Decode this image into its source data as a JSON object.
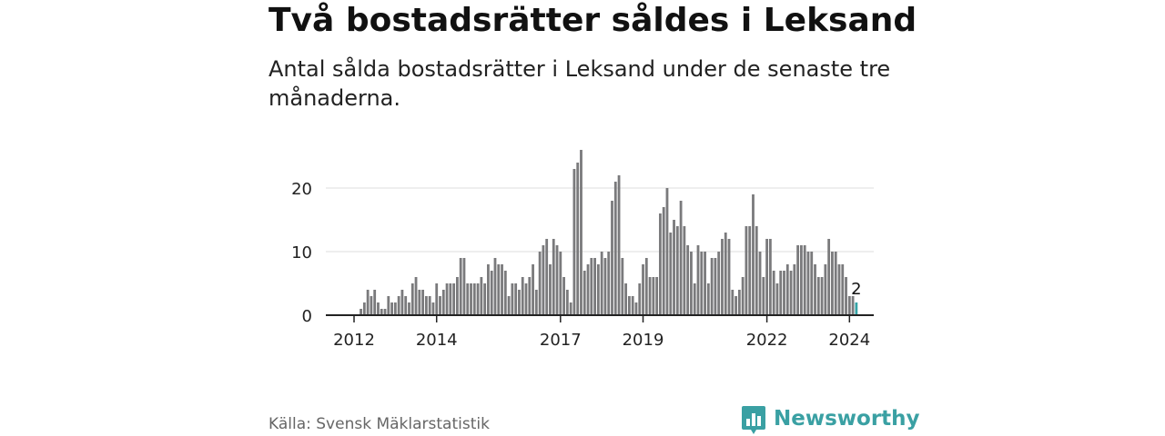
{
  "header": {
    "title": "Två bostadsrätter såldes i Leksand",
    "subtitle": "Antal sålda bostadsrätter i Leksand under de senaste tre månaderna."
  },
  "footer": {
    "source": "Källa: Svensk Mäklarstatistik",
    "brand": "Newsworthy"
  },
  "colors": {
    "bar": "#7a7a7c",
    "highlight": "#35a3a6",
    "grid": "#dddddd",
    "axis": "#222222",
    "brand": "#3aa0a3"
  },
  "chart_data": {
    "type": "bar",
    "title": "Två bostadsrätter såldes i Leksand",
    "xlabel": "",
    "ylabel": "",
    "ylim": [
      0,
      25
    ],
    "yticks": [
      0,
      10,
      20
    ],
    "xticks": [
      {
        "label": "2012",
        "index": 0
      },
      {
        "label": "2014",
        "index": 24
      },
      {
        "label": "2017",
        "index": 60
      },
      {
        "label": "2019",
        "index": 84
      },
      {
        "label": "2022",
        "index": 120
      },
      {
        "label": "2024",
        "index": 144
      }
    ],
    "highlight_label": "2",
    "values": [
      0,
      0,
      1,
      2,
      4,
      3,
      4,
      2,
      1,
      1,
      3,
      2,
      2,
      3,
      4,
      3,
      2,
      5,
      6,
      4,
      4,
      3,
      3,
      2,
      5,
      3,
      4,
      5,
      5,
      5,
      6,
      9,
      9,
      5,
      5,
      5,
      5,
      6,
      5,
      8,
      7,
      9,
      8,
      8,
      7,
      3,
      5,
      5,
      4,
      6,
      5,
      6,
      8,
      4,
      10,
      11,
      12,
      8,
      12,
      11,
      10,
      6,
      4,
      2,
      23,
      24,
      26,
      7,
      8,
      9,
      9,
      8,
      10,
      9,
      10,
      18,
      21,
      22,
      9,
      5,
      3,
      3,
      2,
      5,
      8,
      9,
      6,
      6,
      6,
      16,
      17,
      20,
      13,
      15,
      14,
      18,
      14,
      11,
      10,
      5,
      11,
      10,
      10,
      5,
      9,
      9,
      10,
      12,
      13,
      12,
      4,
      3,
      4,
      6,
      14,
      14,
      19,
      14,
      10,
      6,
      12,
      12,
      7,
      5,
      7,
      7,
      8,
      7,
      8,
      11,
      11,
      11,
      10,
      10,
      8,
      6,
      6,
      8,
      12,
      10,
      10,
      8,
      8,
      6,
      3,
      3,
      2
    ]
  }
}
